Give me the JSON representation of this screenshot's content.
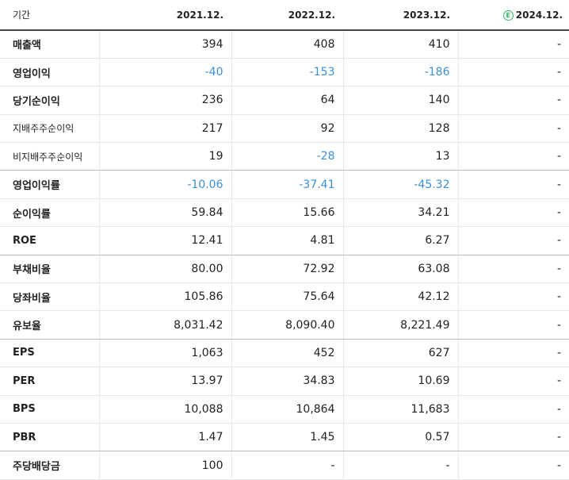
{
  "header": {
    "period_label": "기간",
    "years": [
      "2021.12.",
      "2022.12.",
      "2023.12."
    ],
    "estimate_badge": "E",
    "estimate_year": "2024.12."
  },
  "rows": [
    {
      "label": "매출액",
      "values": [
        "394",
        "408",
        "410",
        "-"
      ],
      "neg": [
        false,
        false,
        false,
        false
      ]
    },
    {
      "label": "영업이익",
      "values": [
        "-40",
        "-153",
        "-186",
        "-"
      ],
      "neg": [
        true,
        true,
        true,
        false
      ]
    },
    {
      "label": "당기순이익",
      "values": [
        "236",
        "64",
        "140",
        "-"
      ],
      "neg": [
        false,
        false,
        false,
        false
      ]
    },
    {
      "label": "지배주주순이익",
      "values": [
        "217",
        "92",
        "128",
        "-"
      ],
      "neg": [
        false,
        false,
        false,
        false
      ]
    },
    {
      "label": "비지배주주순이익",
      "values": [
        "19",
        "-28",
        "13",
        "-"
      ],
      "neg": [
        false,
        true,
        false,
        false
      ]
    },
    {
      "label": "영업이익률",
      "values": [
        "-10.06",
        "-37.41",
        "-45.32",
        "-"
      ],
      "neg": [
        true,
        true,
        true,
        false
      ]
    },
    {
      "label": "순이익률",
      "values": [
        "59.84",
        "15.66",
        "34.21",
        "-"
      ],
      "neg": [
        false,
        false,
        false,
        false
      ]
    },
    {
      "label": "ROE",
      "values": [
        "12.41",
        "4.81",
        "6.27",
        "-"
      ],
      "neg": [
        false,
        false,
        false,
        false
      ]
    },
    {
      "label": "부채비율",
      "values": [
        "80.00",
        "72.92",
        "63.08",
        "-"
      ],
      "neg": [
        false,
        false,
        false,
        false
      ]
    },
    {
      "label": "당좌비율",
      "values": [
        "105.86",
        "75.64",
        "42.12",
        "-"
      ],
      "neg": [
        false,
        false,
        false,
        false
      ]
    },
    {
      "label": "유보율",
      "values": [
        "8,031.42",
        "8,090.40",
        "8,221.49",
        "-"
      ],
      "neg": [
        false,
        false,
        false,
        false
      ]
    },
    {
      "label": "EPS",
      "values": [
        "1,063",
        "452",
        "627",
        "-"
      ],
      "neg": [
        false,
        false,
        false,
        false
      ]
    },
    {
      "label": "PER",
      "values": [
        "13.97",
        "34.83",
        "10.69",
        "-"
      ],
      "neg": [
        false,
        false,
        false,
        false
      ]
    },
    {
      "label": "BPS",
      "values": [
        "10,088",
        "10,864",
        "11,683",
        "-"
      ],
      "neg": [
        false,
        false,
        false,
        false
      ]
    },
    {
      "label": "PBR",
      "values": [
        "1.47",
        "1.45",
        "0.57",
        "-"
      ],
      "neg": [
        false,
        false,
        false,
        false
      ]
    },
    {
      "label": "주당배당금",
      "values": [
        "100",
        "-",
        "-",
        "-"
      ],
      "neg": [
        false,
        false,
        false,
        false
      ]
    }
  ]
}
